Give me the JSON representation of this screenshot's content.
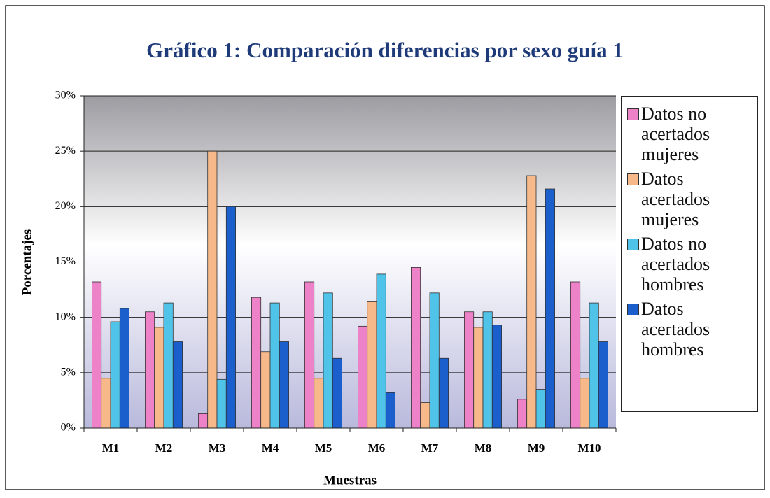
{
  "chart_data": {
    "type": "bar",
    "title": "Gráfico 1: Comparación diferencias por sexo guía 1",
    "x_label": "Muestras",
    "y_label": "Porcentajes",
    "categories": [
      "M1",
      "M2",
      "M3",
      "M4",
      "M5",
      "M6",
      "M7",
      "M8",
      "M9",
      "M10"
    ],
    "series": [
      {
        "name": "Datos no acertados mujeres",
        "color": "#ee82c8",
        "values": [
          13.2,
          10.5,
          1.3,
          11.8,
          13.2,
          9.2,
          14.5,
          10.5,
          2.6,
          13.2
        ]
      },
      {
        "name": "Datos acertados mujeres",
        "color": "#f7b98a",
        "values": [
          4.5,
          9.1,
          25.0,
          6.9,
          4.5,
          11.4,
          2.3,
          9.1,
          22.8,
          4.5
        ]
      },
      {
        "name": "Datos no acertados hombres",
        "color": "#4fc3e8",
        "values": [
          9.6,
          11.3,
          4.4,
          11.3,
          12.2,
          13.9,
          12.2,
          10.5,
          3.5,
          11.3
        ]
      },
      {
        "name": "Datos acertados hombres",
        "color": "#1a5fcc",
        "values": [
          10.8,
          7.8,
          20.0,
          7.8,
          6.3,
          3.2,
          6.3,
          9.3,
          21.6,
          7.8
        ]
      }
    ],
    "ylim": [
      0,
      30
    ],
    "yticks": [
      {
        "value": 0,
        "label": "0%"
      },
      {
        "value": 5,
        "label": "5%"
      },
      {
        "value": 10,
        "label": "10%"
      },
      {
        "value": 15,
        "label": "15%"
      },
      {
        "value": 20,
        "label": "20%"
      },
      {
        "value": 25,
        "label": "25%"
      },
      {
        "value": 30,
        "label": "30%"
      }
    ],
    "grid": true,
    "legend": "right"
  }
}
